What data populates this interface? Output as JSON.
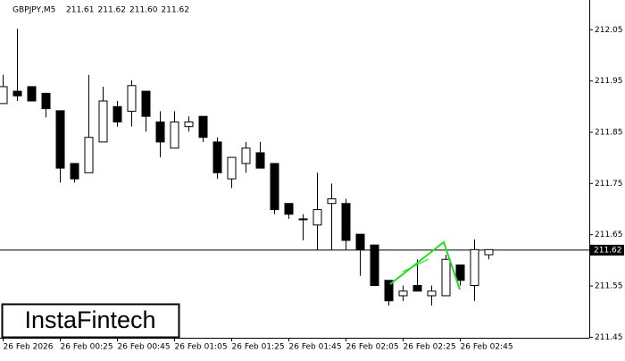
{
  "chart_data": {
    "type": "candlestick",
    "title": "GBPJPY,M5",
    "header_values": [
      "211.61",
      "211.62",
      "211.60",
      "211.62"
    ],
    "watermark": "InstaFintech",
    "categories": [
      "26 Feb 2026",
      null,
      null,
      null,
      "26 Feb 00:25",
      null,
      null,
      null,
      "26 Feb 00:45",
      null,
      null,
      null,
      "26 Feb 01:05",
      null,
      null,
      null,
      "26 Feb 01:25",
      null,
      null,
      null,
      "26 Feb 01:45",
      null,
      null,
      null,
      "26 Feb 02:05",
      null,
      null,
      null,
      "26 Feb 02:25",
      null,
      null,
      null,
      "26 Feb 02:45",
      null,
      null
    ],
    "open": [
      211.906,
      211.93,
      211.939,
      211.926,
      211.892,
      211.789,
      211.771,
      211.831,
      211.9,
      211.891,
      211.93,
      211.87,
      211.819,
      211.861,
      211.881,
      211.831,
      211.759,
      211.789,
      211.81,
      211.789,
      211.711,
      211.681,
      211.669,
      211.711,
      211.711,
      211.651,
      211.63,
      211.561,
      211.531,
      211.551,
      211.531,
      211.531,
      211.591,
      211.551,
      211.611
    ],
    "high": [
      211.962,
      212.052,
      211.939,
      211.926,
      211.892,
      211.789,
      211.962,
      211.939,
      211.911,
      211.951,
      211.93,
      211.891,
      211.891,
      211.881,
      211.881,
      211.84,
      211.801,
      211.831,
      211.831,
      211.789,
      211.711,
      211.69,
      211.771,
      211.75,
      211.72,
      211.651,
      211.63,
      211.561,
      211.551,
      211.602,
      211.551,
      211.611,
      211.591,
      211.641,
      211.621
    ],
    "low": [
      211.906,
      211.911,
      211.911,
      211.879,
      211.752,
      211.752,
      211.771,
      211.831,
      211.861,
      211.861,
      211.851,
      211.801,
      211.819,
      211.851,
      211.831,
      211.759,
      211.741,
      211.771,
      211.78,
      211.69,
      211.681,
      211.639,
      211.621,
      211.621,
      211.621,
      211.57,
      211.551,
      211.512,
      211.521,
      211.54,
      211.512,
      211.531,
      211.551,
      211.521,
      211.602
    ],
    "close": [
      211.939,
      211.921,
      211.911,
      211.896,
      211.78,
      211.759,
      211.84,
      211.911,
      211.87,
      211.941,
      211.881,
      211.831,
      211.87,
      211.87,
      211.84,
      211.771,
      211.801,
      211.819,
      211.78,
      211.699,
      211.69,
      211.681,
      211.699,
      211.72,
      211.639,
      211.621,
      211.551,
      211.521,
      211.54,
      211.54,
      211.54,
      211.602,
      211.561,
      211.621,
      211.621
    ],
    "up_color": "#ffffff",
    "down_color": "#000000",
    "outline_color": "#000000",
    "current_price": 211.62,
    "ylim": [
      211.449,
      212.108
    ],
    "yticks": [
      211.45,
      211.55,
      211.65,
      211.75,
      211.85,
      211.95,
      212.05
    ]
  }
}
